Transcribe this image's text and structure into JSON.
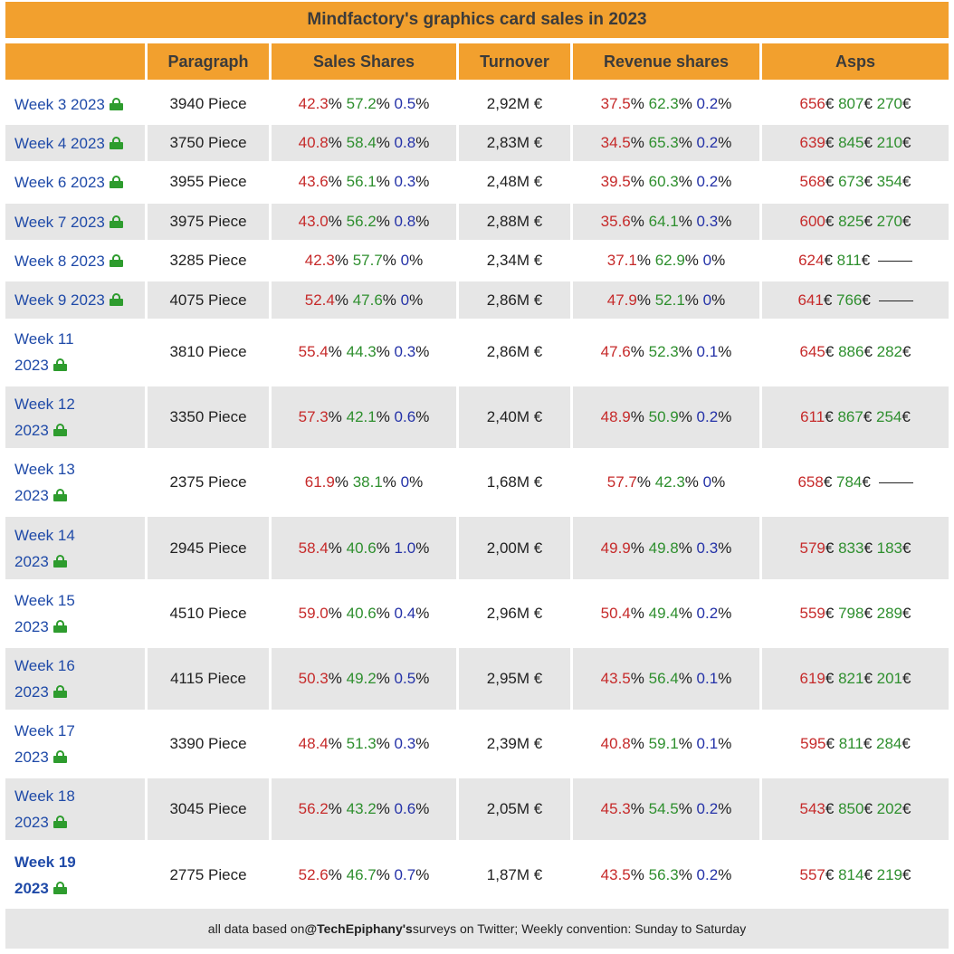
{
  "title": "Mindfactory's graphics card sales in 2023",
  "columns": [
    "",
    "Paragraph",
    "Sales Shares",
    "Turnover",
    "Revenue shares",
    "Asps"
  ],
  "colors": {
    "header": "#f2a02e",
    "amd": "#c62a2a",
    "nvidia": "#2e8f2e",
    "intel": "#2432a8",
    "link": "#1f4aa8",
    "lock": "#2e9c2e"
  },
  "rows": [
    {
      "week": "Week 3 2023",
      "paragraph": "3940 Piece",
      "sales": [
        "42.3",
        "57.2",
        "0.5"
      ],
      "turnover": "2,92M €",
      "revenue": [
        "37.5",
        "62.3",
        "0.2"
      ],
      "asps": [
        "656",
        "807",
        "270"
      ]
    },
    {
      "week": "Week 4 2023",
      "paragraph": "3750 Piece",
      "sales": [
        "40.8",
        "58.4",
        "0.8"
      ],
      "turnover": "2,83M €",
      "revenue": [
        "34.5",
        "65.3",
        "0.2"
      ],
      "asps": [
        "639",
        "845",
        "210"
      ]
    },
    {
      "week": "Week 6 2023",
      "paragraph": "3955 Piece",
      "sales": [
        "43.6",
        "56.1",
        "0.3"
      ],
      "turnover": "2,48M €",
      "revenue": [
        "39.5",
        "60.3",
        "0.2"
      ],
      "asps": [
        "568",
        "673",
        "354"
      ]
    },
    {
      "week": "Week 7 2023",
      "paragraph": "3975 Piece",
      "sales": [
        "43.0",
        "56.2",
        "0.8"
      ],
      "turnover": "2,88M €",
      "revenue": [
        "35.6",
        "64.1",
        "0.3"
      ],
      "asps": [
        "600",
        "825",
        "270"
      ]
    },
    {
      "week": "Week 8 2023",
      "paragraph": "3285 Piece",
      "sales": [
        "42.3",
        "57.7",
        "0"
      ],
      "turnover": "2,34M €",
      "revenue": [
        "37.1",
        "62.9",
        "0"
      ],
      "asps": [
        "624",
        "811",
        ""
      ]
    },
    {
      "week": "Week 9 2023",
      "paragraph": "4075 Piece",
      "sales": [
        "52.4",
        "47.6",
        "0"
      ],
      "turnover": "2,86M €",
      "revenue": [
        "47.9",
        "52.1",
        "0"
      ],
      "asps": [
        "641",
        "766",
        ""
      ]
    },
    {
      "week": "Week 11 2023",
      "paragraph": "3810 Piece",
      "sales": [
        "55.4",
        "44.3",
        "0.3"
      ],
      "turnover": "2,86M €",
      "revenue": [
        "47.6",
        "52.3",
        "0.1"
      ],
      "asps": [
        "645",
        "886",
        "282"
      ]
    },
    {
      "week": "Week 12 2023",
      "paragraph": "3350 Piece",
      "sales": [
        "57.3",
        "42.1",
        "0.6"
      ],
      "turnover": "2,40M €",
      "revenue": [
        "48.9",
        "50.9",
        "0.2"
      ],
      "asps": [
        "611",
        "867",
        "254"
      ]
    },
    {
      "week": "Week 13 2023",
      "paragraph": "2375 Piece",
      "sales": [
        "61.9",
        "38.1",
        "0"
      ],
      "turnover": "1,68M €",
      "revenue": [
        "57.7",
        "42.3",
        "0"
      ],
      "asps": [
        "658",
        "784",
        ""
      ]
    },
    {
      "week": "Week 14 2023",
      "paragraph": "2945 Piece",
      "sales": [
        "58.4",
        "40.6",
        "1.0"
      ],
      "turnover": "2,00M €",
      "revenue": [
        "49.9",
        "49.8",
        "0.3"
      ],
      "asps": [
        "579",
        "833",
        "183"
      ]
    },
    {
      "week": "Week 15 2023",
      "paragraph": "4510 Piece",
      "sales": [
        "59.0",
        "40.6",
        "0.4"
      ],
      "turnover": "2,96M €",
      "revenue": [
        "50.4",
        "49.4",
        "0.2"
      ],
      "asps": [
        "559",
        "798",
        "289"
      ]
    },
    {
      "week": "Week 16 2023",
      "paragraph": "4115 Piece",
      "sales": [
        "50.3",
        "49.2",
        "0.5"
      ],
      "turnover": "2,95M €",
      "revenue": [
        "43.5",
        "56.4",
        "0.1"
      ],
      "asps": [
        "619",
        "821",
        "201"
      ]
    },
    {
      "week": "Week 17 2023",
      "paragraph": "3390 Piece",
      "sales": [
        "48.4",
        "51.3",
        "0.3"
      ],
      "turnover": "2,39M €",
      "revenue": [
        "40.8",
        "59.1",
        "0.1"
      ],
      "asps": [
        "595",
        "811",
        "284"
      ]
    },
    {
      "week": "Week 18 2023",
      "paragraph": "3045 Piece",
      "sales": [
        "56.2",
        "43.2",
        "0.6"
      ],
      "turnover": "2,05M €",
      "revenue": [
        "45.3",
        "54.5",
        "0.2"
      ],
      "asps": [
        "543",
        "850",
        "202"
      ]
    },
    {
      "week": "Week 19 2023",
      "paragraph": "2775 Piece",
      "sales": [
        "52.6",
        "46.7",
        "0.7"
      ],
      "turnover": "1,87M €",
      "revenue": [
        "43.5",
        "56.3",
        "0.2"
      ],
      "asps": [
        "557",
        "814",
        "219"
      ],
      "current": true
    }
  ],
  "footer": {
    "prefix": "all data based on ",
    "handle": "@TechEpiphany's",
    "suffix": " surveys on Twitter; Weekly convention: Sunday to Saturday"
  }
}
